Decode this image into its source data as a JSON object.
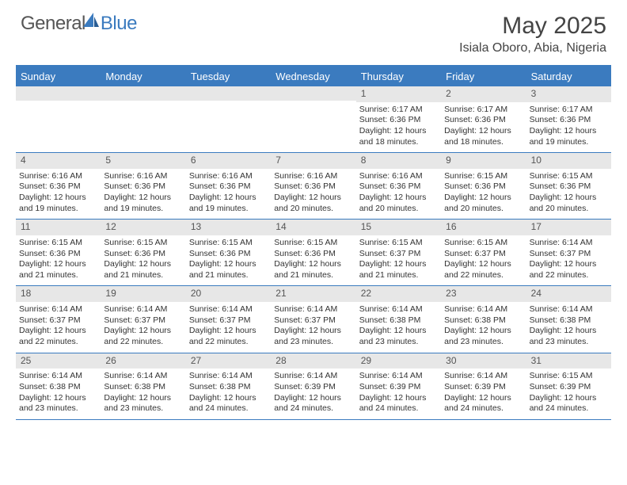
{
  "brand": {
    "part1": "General",
    "part2": "Blue"
  },
  "title": "May 2025",
  "location": "Isiala Oboro, Abia, Nigeria",
  "colors": {
    "accent": "#3b7bbf",
    "daybar": "#e7e7e7",
    "text": "#333333",
    "bg": "#ffffff"
  },
  "dow": [
    "Sunday",
    "Monday",
    "Tuesday",
    "Wednesday",
    "Thursday",
    "Friday",
    "Saturday"
  ],
  "weeks": [
    [
      null,
      null,
      null,
      null,
      {
        "n": "1",
        "sr": "Sunrise: 6:17 AM",
        "ss": "Sunset: 6:36 PM",
        "dl": "Daylight: 12 hours and 18 minutes."
      },
      {
        "n": "2",
        "sr": "Sunrise: 6:17 AM",
        "ss": "Sunset: 6:36 PM",
        "dl": "Daylight: 12 hours and 18 minutes."
      },
      {
        "n": "3",
        "sr": "Sunrise: 6:17 AM",
        "ss": "Sunset: 6:36 PM",
        "dl": "Daylight: 12 hours and 19 minutes."
      }
    ],
    [
      {
        "n": "4",
        "sr": "Sunrise: 6:16 AM",
        "ss": "Sunset: 6:36 PM",
        "dl": "Daylight: 12 hours and 19 minutes."
      },
      {
        "n": "5",
        "sr": "Sunrise: 6:16 AM",
        "ss": "Sunset: 6:36 PM",
        "dl": "Daylight: 12 hours and 19 minutes."
      },
      {
        "n": "6",
        "sr": "Sunrise: 6:16 AM",
        "ss": "Sunset: 6:36 PM",
        "dl": "Daylight: 12 hours and 19 minutes."
      },
      {
        "n": "7",
        "sr": "Sunrise: 6:16 AM",
        "ss": "Sunset: 6:36 PM",
        "dl": "Daylight: 12 hours and 20 minutes."
      },
      {
        "n": "8",
        "sr": "Sunrise: 6:16 AM",
        "ss": "Sunset: 6:36 PM",
        "dl": "Daylight: 12 hours and 20 minutes."
      },
      {
        "n": "9",
        "sr": "Sunrise: 6:15 AM",
        "ss": "Sunset: 6:36 PM",
        "dl": "Daylight: 12 hours and 20 minutes."
      },
      {
        "n": "10",
        "sr": "Sunrise: 6:15 AM",
        "ss": "Sunset: 6:36 PM",
        "dl": "Daylight: 12 hours and 20 minutes."
      }
    ],
    [
      {
        "n": "11",
        "sr": "Sunrise: 6:15 AM",
        "ss": "Sunset: 6:36 PM",
        "dl": "Daylight: 12 hours and 21 minutes."
      },
      {
        "n": "12",
        "sr": "Sunrise: 6:15 AM",
        "ss": "Sunset: 6:36 PM",
        "dl": "Daylight: 12 hours and 21 minutes."
      },
      {
        "n": "13",
        "sr": "Sunrise: 6:15 AM",
        "ss": "Sunset: 6:36 PM",
        "dl": "Daylight: 12 hours and 21 minutes."
      },
      {
        "n": "14",
        "sr": "Sunrise: 6:15 AM",
        "ss": "Sunset: 6:36 PM",
        "dl": "Daylight: 12 hours and 21 minutes."
      },
      {
        "n": "15",
        "sr": "Sunrise: 6:15 AM",
        "ss": "Sunset: 6:37 PM",
        "dl": "Daylight: 12 hours and 21 minutes."
      },
      {
        "n": "16",
        "sr": "Sunrise: 6:15 AM",
        "ss": "Sunset: 6:37 PM",
        "dl": "Daylight: 12 hours and 22 minutes."
      },
      {
        "n": "17",
        "sr": "Sunrise: 6:14 AM",
        "ss": "Sunset: 6:37 PM",
        "dl": "Daylight: 12 hours and 22 minutes."
      }
    ],
    [
      {
        "n": "18",
        "sr": "Sunrise: 6:14 AM",
        "ss": "Sunset: 6:37 PM",
        "dl": "Daylight: 12 hours and 22 minutes."
      },
      {
        "n": "19",
        "sr": "Sunrise: 6:14 AM",
        "ss": "Sunset: 6:37 PM",
        "dl": "Daylight: 12 hours and 22 minutes."
      },
      {
        "n": "20",
        "sr": "Sunrise: 6:14 AM",
        "ss": "Sunset: 6:37 PM",
        "dl": "Daylight: 12 hours and 22 minutes."
      },
      {
        "n": "21",
        "sr": "Sunrise: 6:14 AM",
        "ss": "Sunset: 6:37 PM",
        "dl": "Daylight: 12 hours and 23 minutes."
      },
      {
        "n": "22",
        "sr": "Sunrise: 6:14 AM",
        "ss": "Sunset: 6:38 PM",
        "dl": "Daylight: 12 hours and 23 minutes."
      },
      {
        "n": "23",
        "sr": "Sunrise: 6:14 AM",
        "ss": "Sunset: 6:38 PM",
        "dl": "Daylight: 12 hours and 23 minutes."
      },
      {
        "n": "24",
        "sr": "Sunrise: 6:14 AM",
        "ss": "Sunset: 6:38 PM",
        "dl": "Daylight: 12 hours and 23 minutes."
      }
    ],
    [
      {
        "n": "25",
        "sr": "Sunrise: 6:14 AM",
        "ss": "Sunset: 6:38 PM",
        "dl": "Daylight: 12 hours and 23 minutes."
      },
      {
        "n": "26",
        "sr": "Sunrise: 6:14 AM",
        "ss": "Sunset: 6:38 PM",
        "dl": "Daylight: 12 hours and 23 minutes."
      },
      {
        "n": "27",
        "sr": "Sunrise: 6:14 AM",
        "ss": "Sunset: 6:38 PM",
        "dl": "Daylight: 12 hours and 24 minutes."
      },
      {
        "n": "28",
        "sr": "Sunrise: 6:14 AM",
        "ss": "Sunset: 6:39 PM",
        "dl": "Daylight: 12 hours and 24 minutes."
      },
      {
        "n": "29",
        "sr": "Sunrise: 6:14 AM",
        "ss": "Sunset: 6:39 PM",
        "dl": "Daylight: 12 hours and 24 minutes."
      },
      {
        "n": "30",
        "sr": "Sunrise: 6:14 AM",
        "ss": "Sunset: 6:39 PM",
        "dl": "Daylight: 12 hours and 24 minutes."
      },
      {
        "n": "31",
        "sr": "Sunrise: 6:15 AM",
        "ss": "Sunset: 6:39 PM",
        "dl": "Daylight: 12 hours and 24 minutes."
      }
    ]
  ]
}
